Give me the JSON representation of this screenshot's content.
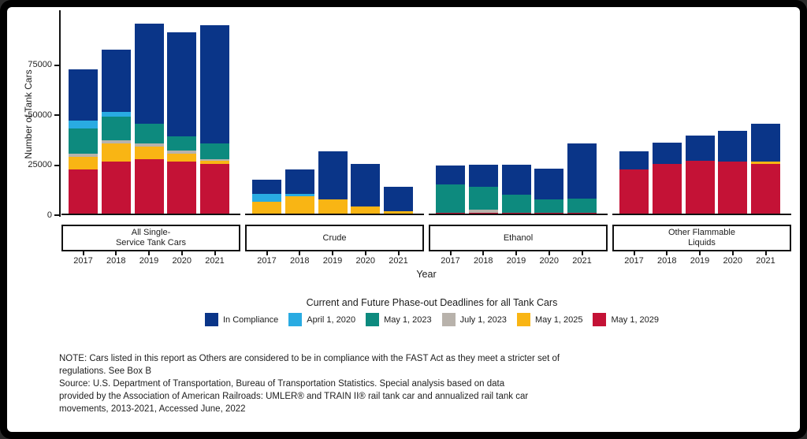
{
  "chart_data": {
    "type": "bar",
    "stacked": true,
    "ylabel": "Number of Tank Cars",
    "xlabel": "Year",
    "ylim": [
      0,
      102000
    ],
    "yticks": [
      0,
      25000,
      50000,
      75000
    ],
    "grid": "off",
    "legend_position": "bottom",
    "legend": {
      "title": "Current and Future Phase-out Deadlines for all Tank Cars",
      "items": [
        {
          "key": "in_compliance",
          "label": "In Compliance",
          "color": "#0A3588"
        },
        {
          "key": "apr2020",
          "label": "April 1, 2020",
          "color": "#29ABE2"
        },
        {
          "key": "may2023",
          "label": "May 1, 2023",
          "color": "#0D8A7E"
        },
        {
          "key": "jul2023",
          "label": "July 1, 2023",
          "color": "#B8B2AB"
        },
        {
          "key": "may2025",
          "label": "May 1, 2025",
          "color": "#F9B514"
        },
        {
          "key": "may2029",
          "label": "May 1, 2029",
          "color": "#C41236"
        }
      ]
    },
    "groups": [
      {
        "label": "All Single-Service Tank Cars",
        "label_lines": [
          "All Single-",
          "Service Tank Cars"
        ],
        "bars": [
          {
            "year": "2017",
            "segments": [
              {
                "key": "may2029",
                "value": 22000
              },
              {
                "key": "may2025",
                "value": 6500
              },
              {
                "key": "jul2023",
                "value": 1500
              },
              {
                "key": "may2023",
                "value": 12500
              },
              {
                "key": "apr2020",
                "value": 4000
              },
              {
                "key": "in_compliance",
                "value": 25500
              }
            ]
          },
          {
            "year": "2018",
            "segments": [
              {
                "key": "may2029",
                "value": 26000
              },
              {
                "key": "may2025",
                "value": 9000
              },
              {
                "key": "jul2023",
                "value": 1500
              },
              {
                "key": "may2023",
                "value": 12000
              },
              {
                "key": "apr2020",
                "value": 2500
              },
              {
                "key": "in_compliance",
                "value": 31000
              }
            ]
          },
          {
            "year": "2019",
            "segments": [
              {
                "key": "may2029",
                "value": 27000
              },
              {
                "key": "may2025",
                "value": 6500
              },
              {
                "key": "jul2023",
                "value": 1500
              },
              {
                "key": "may2023",
                "value": 10000
              },
              {
                "key": "in_compliance",
                "value": 50000
              }
            ]
          },
          {
            "year": "2020",
            "segments": [
              {
                "key": "may2029",
                "value": 26000
              },
              {
                "key": "may2025",
                "value": 4000
              },
              {
                "key": "jul2023",
                "value": 1500
              },
              {
                "key": "may2023",
                "value": 7000
              },
              {
                "key": "in_compliance",
                "value": 52000
              }
            ]
          },
          {
            "year": "2021",
            "segments": [
              {
                "key": "may2029",
                "value": 25000
              },
              {
                "key": "may2025",
                "value": 1500
              },
              {
                "key": "jul2023",
                "value": 500
              },
              {
                "key": "may2023",
                "value": 8000
              },
              {
                "key": "in_compliance",
                "value": 59000
              }
            ]
          }
        ]
      },
      {
        "label": "Crude",
        "label_lines": [
          "Crude"
        ],
        "bars": [
          {
            "year": "2017",
            "segments": [
              {
                "key": "may2025",
                "value": 6000
              },
              {
                "key": "apr2020",
                "value": 4000
              },
              {
                "key": "in_compliance",
                "value": 7000
              }
            ]
          },
          {
            "year": "2018",
            "segments": [
              {
                "key": "may2025",
                "value": 8500
              },
              {
                "key": "apr2020",
                "value": 1500
              },
              {
                "key": "in_compliance",
                "value": 12000
              }
            ]
          },
          {
            "year": "2019",
            "segments": [
              {
                "key": "may2025",
                "value": 7000
              },
              {
                "key": "in_compliance",
                "value": 24000
              }
            ]
          },
          {
            "year": "2020",
            "segments": [
              {
                "key": "may2025",
                "value": 3500
              },
              {
                "key": "in_compliance",
                "value": 21500
              }
            ]
          },
          {
            "year": "2021",
            "segments": [
              {
                "key": "may2025",
                "value": 1000
              },
              {
                "key": "in_compliance",
                "value": 12500
              }
            ]
          }
        ]
      },
      {
        "label": "Ethanol",
        "label_lines": [
          "Ethanol"
        ],
        "bars": [
          {
            "year": "2017",
            "segments": [
              {
                "key": "may2029",
                "value": 500
              },
              {
                "key": "may2023",
                "value": 14000
              },
              {
                "key": "in_compliance",
                "value": 9500
              }
            ]
          },
          {
            "year": "2018",
            "segments": [
              {
                "key": "may2029",
                "value": 500
              },
              {
                "key": "jul2023",
                "value": 1500
              },
              {
                "key": "may2023",
                "value": 11500
              },
              {
                "key": "in_compliance",
                "value": 11000
              }
            ]
          },
          {
            "year": "2019",
            "segments": [
              {
                "key": "may2029",
                "value": 500
              },
              {
                "key": "may2023",
                "value": 9000
              },
              {
                "key": "in_compliance",
                "value": 15000
              }
            ]
          },
          {
            "year": "2020",
            "segments": [
              {
                "key": "may2029",
                "value": 500
              },
              {
                "key": "may2023",
                "value": 6500
              },
              {
                "key": "in_compliance",
                "value": 15500
              }
            ]
          },
          {
            "year": "2021",
            "segments": [
              {
                "key": "may2029",
                "value": 500
              },
              {
                "key": "may2023",
                "value": 7000
              },
              {
                "key": "in_compliance",
                "value": 27500
              }
            ]
          }
        ]
      },
      {
        "label": "Other Flammable Liquids",
        "label_lines": [
          "Other Flammable",
          "Liquids"
        ],
        "bars": [
          {
            "year": "2017",
            "segments": [
              {
                "key": "may2029",
                "value": 22000
              },
              {
                "key": "in_compliance",
                "value": 9000
              }
            ]
          },
          {
            "year": "2018",
            "segments": [
              {
                "key": "may2029",
                "value": 25000
              },
              {
                "key": "in_compliance",
                "value": 10500
              }
            ]
          },
          {
            "year": "2019",
            "segments": [
              {
                "key": "may2029",
                "value": 26500
              },
              {
                "key": "in_compliance",
                "value": 12500
              }
            ]
          },
          {
            "year": "2020",
            "segments": [
              {
                "key": "may2029",
                "value": 26000
              },
              {
                "key": "in_compliance",
                "value": 15500
              }
            ]
          },
          {
            "year": "2021",
            "segments": [
              {
                "key": "may2029",
                "value": 25000
              },
              {
                "key": "may2025",
                "value": 1000
              },
              {
                "key": "in_compliance",
                "value": 19000
              }
            ]
          }
        ]
      }
    ]
  },
  "notes": {
    "lines": [
      "NOTE: Cars listed in this report as Others are considered to be in compliance with the FAST Act as they meet a stricter set of",
      "regulations. See Box B",
      "Source: U.S. Department of Transportation, Bureau of Transportation Statistics. Special analysis based on data",
      "provided by the Association of American Railroads: UMLER® and TRAIN II® rail tank car and annualized rail tank car",
      "movements, 2013-2021, Accessed June, 2022"
    ]
  }
}
